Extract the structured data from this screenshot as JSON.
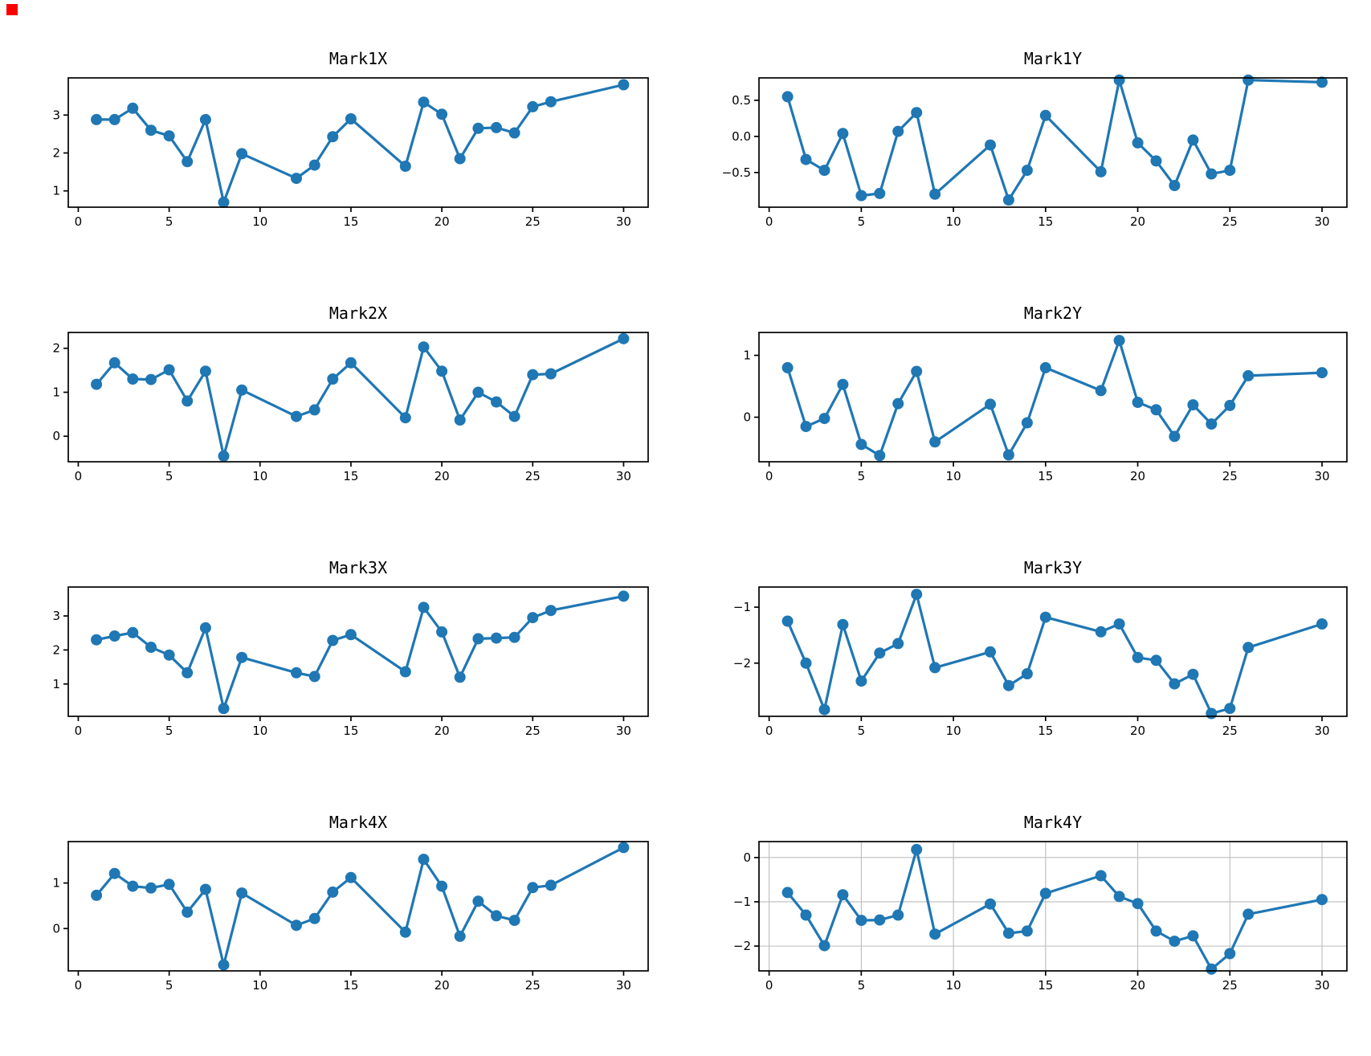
{
  "corner_marker": {
    "color": "#fa0000"
  },
  "chart_data": [
    {
      "type": "line",
      "title": "Mark1X",
      "x": [
        1,
        2,
        3,
        4,
        5,
        6,
        7,
        8,
        9,
        12,
        13,
        14,
        15,
        18,
        19,
        20,
        21,
        22,
        23,
        24,
        25,
        26,
        30
      ],
      "values": [
        2.88,
        2.88,
        3.18,
        2.6,
        2.45,
        1.77,
        2.88,
        0.7,
        1.98,
        1.33,
        1.68,
        2.43,
        2.9,
        1.65,
        3.34,
        3.02,
        1.85,
        2.65,
        2.67,
        2.53,
        3.22,
        3.35,
        3.8
      ],
      "xlim": [
        -0.55,
        31.35
      ],
      "ylim": [
        0.57,
        3.98
      ],
      "xticks": {
        "values": [
          0,
          5,
          10,
          15,
          20,
          25,
          30
        ],
        "labels": [
          "0",
          "5",
          "10",
          "15",
          "20",
          "25",
          "30"
        ]
      },
      "yticks": {
        "values": [
          3,
          2,
          1
        ],
        "labels": [
          "3",
          "2",
          "1"
        ]
      },
      "grid": false,
      "legend": "none",
      "line_color": "#1f77b4",
      "marker": "circle"
    },
    {
      "type": "line",
      "title": "Mark1Y",
      "x": [
        1,
        2,
        3,
        4,
        5,
        6,
        7,
        8,
        9,
        12,
        13,
        14,
        15,
        18,
        19,
        20,
        21,
        22,
        23,
        24,
        25,
        26,
        30
      ],
      "values": [
        0.55,
        -0.32,
        -0.47,
        0.04,
        -0.82,
        -0.79,
        0.07,
        0.33,
        -0.8,
        -0.12,
        -0.88,
        -0.47,
        0.29,
        -0.49,
        0.78,
        -0.09,
        -0.34,
        -0.68,
        -0.05,
        -0.52,
        -0.47,
        0.78,
        0.75
      ],
      "xlim": [
        -0.55,
        31.35
      ],
      "ylim": [
        -0.98,
        0.81
      ],
      "xticks": {
        "values": [
          0,
          5,
          10,
          15,
          20,
          25,
          30
        ],
        "labels": [
          "0",
          "5",
          "10",
          "15",
          "20",
          "25",
          "30"
        ]
      },
      "yticks": {
        "values": [
          0.5,
          0.0,
          -0.5
        ],
        "labels": [
          "0.5",
          "0.0",
          "−0.5"
        ]
      },
      "grid": false,
      "legend": "none",
      "line_color": "#1f77b4",
      "marker": "circle"
    },
    {
      "type": "line",
      "title": "Mark2X",
      "x": [
        1,
        2,
        3,
        4,
        5,
        6,
        7,
        8,
        9,
        12,
        13,
        14,
        15,
        18,
        19,
        20,
        21,
        22,
        23,
        24,
        25,
        26,
        30
      ],
      "values": [
        1.18,
        1.67,
        1.3,
        1.29,
        1.51,
        0.8,
        1.48,
        -0.45,
        1.05,
        0.45,
        0.6,
        1.3,
        1.67,
        0.42,
        2.03,
        1.48,
        0.37,
        1.0,
        0.78,
        0.45,
        1.4,
        1.42,
        2.22
      ],
      "xlim": [
        -0.55,
        31.35
      ],
      "ylim": [
        -0.58,
        2.36
      ],
      "xticks": {
        "values": [
          0,
          5,
          10,
          15,
          20,
          25,
          30
        ],
        "labels": [
          "0",
          "5",
          "10",
          "15",
          "20",
          "25",
          "30"
        ]
      },
      "yticks": {
        "values": [
          2,
          1,
          0
        ],
        "labels": [
          "2",
          "1",
          "0"
        ]
      },
      "grid": false,
      "legend": "none",
      "line_color": "#1f77b4",
      "marker": "circle"
    },
    {
      "type": "line",
      "title": "Mark2Y",
      "x": [
        1,
        2,
        3,
        4,
        5,
        6,
        7,
        8,
        9,
        12,
        13,
        14,
        15,
        18,
        19,
        20,
        21,
        22,
        23,
        24,
        25,
        26,
        30
      ],
      "values": [
        0.8,
        -0.15,
        -0.02,
        0.53,
        -0.44,
        -0.62,
        0.22,
        0.74,
        -0.4,
        0.21,
        -0.61,
        -0.09,
        0.8,
        0.43,
        1.24,
        0.24,
        0.12,
        -0.31,
        0.2,
        -0.11,
        0.19,
        0.67,
        0.72
      ],
      "xlim": [
        -0.55,
        31.35
      ],
      "ylim": [
        -0.72,
        1.37
      ],
      "xticks": {
        "values": [
          0,
          5,
          10,
          15,
          20,
          25,
          30
        ],
        "labels": [
          "0",
          "5",
          "10",
          "15",
          "20",
          "25",
          "30"
        ]
      },
      "yticks": {
        "values": [
          1,
          0
        ],
        "labels": [
          "1",
          "0"
        ]
      },
      "grid": false,
      "legend": "none",
      "line_color": "#1f77b4",
      "marker": "circle"
    },
    {
      "type": "line",
      "title": "Mark3X",
      "x": [
        1,
        2,
        3,
        4,
        5,
        6,
        7,
        8,
        9,
        12,
        13,
        14,
        15,
        18,
        19,
        20,
        21,
        22,
        23,
        24,
        25,
        26,
        30
      ],
      "values": [
        2.3,
        2.41,
        2.51,
        2.08,
        1.85,
        1.33,
        2.65,
        0.28,
        1.78,
        1.33,
        1.22,
        2.28,
        2.45,
        1.36,
        3.25,
        2.53,
        1.2,
        2.33,
        2.35,
        2.37,
        2.95,
        3.16,
        3.58
      ],
      "xlim": [
        -0.55,
        31.35
      ],
      "ylim": [
        0.05,
        3.85
      ],
      "xticks": {
        "values": [
          0,
          5,
          10,
          15,
          20,
          25,
          30
        ],
        "labels": [
          "0",
          "5",
          "10",
          "15",
          "20",
          "25",
          "30"
        ]
      },
      "yticks": {
        "values": [
          3,
          2,
          1
        ],
        "labels": [
          "3",
          "2",
          "1"
        ]
      },
      "grid": false,
      "legend": "none",
      "line_color": "#1f77b4",
      "marker": "circle"
    },
    {
      "type": "line",
      "title": "Mark3Y",
      "x": [
        1,
        2,
        3,
        4,
        5,
        6,
        7,
        8,
        9,
        12,
        13,
        14,
        15,
        18,
        19,
        20,
        21,
        22,
        23,
        24,
        25,
        26,
        30
      ],
      "values": [
        -1.25,
        -2.0,
        -2.83,
        -1.31,
        -2.32,
        -1.82,
        -1.65,
        -0.77,
        -2.08,
        -1.8,
        -2.4,
        -2.19,
        -1.18,
        -1.44,
        -1.3,
        -1.9,
        -1.95,
        -2.37,
        -2.2,
        -2.9,
        -2.81,
        -1.72,
        -1.3
      ],
      "xlim": [
        -0.55,
        31.35
      ],
      "ylim": [
        -2.95,
        -0.64
      ],
      "xticks": {
        "values": [
          0,
          5,
          10,
          15,
          20,
          25,
          30
        ],
        "labels": [
          "0",
          "5",
          "10",
          "15",
          "20",
          "25",
          "30"
        ]
      },
      "yticks": {
        "values": [
          -1,
          -2
        ],
        "labels": [
          "−1",
          "−2"
        ]
      },
      "grid": false,
      "legend": "none",
      "line_color": "#1f77b4",
      "marker": "circle"
    },
    {
      "type": "line",
      "title": "Mark4X",
      "x": [
        1,
        2,
        3,
        4,
        5,
        6,
        7,
        8,
        9,
        12,
        13,
        14,
        15,
        18,
        19,
        20,
        21,
        22,
        23,
        24,
        25,
        26,
        30
      ],
      "values": [
        0.73,
        1.21,
        0.93,
        0.89,
        0.97,
        0.36,
        0.86,
        -0.8,
        0.78,
        0.07,
        0.22,
        0.8,
        1.12,
        -0.08,
        1.52,
        0.93,
        -0.17,
        0.6,
        0.28,
        0.18,
        0.9,
        0.95,
        1.78
      ],
      "xlim": [
        -0.55,
        31.35
      ],
      "ylim": [
        -0.93,
        1.91
      ],
      "xticks": {
        "values": [
          0,
          5,
          10,
          15,
          20,
          25,
          30
        ],
        "labels": [
          "0",
          "5",
          "10",
          "15",
          "20",
          "25",
          "30"
        ]
      },
      "yticks": {
        "values": [
          1,
          0
        ],
        "labels": [
          "1",
          "0"
        ]
      },
      "grid": false,
      "legend": "none",
      "line_color": "#1f77b4",
      "marker": "circle"
    },
    {
      "type": "line",
      "title": "Mark4Y",
      "x": [
        1,
        2,
        3,
        4,
        5,
        6,
        7,
        8,
        9,
        12,
        13,
        14,
        15,
        18,
        19,
        20,
        21,
        22,
        23,
        24,
        25,
        26,
        30
      ],
      "values": [
        -0.79,
        -1.3,
        -1.99,
        -0.84,
        -1.42,
        -1.41,
        -1.3,
        0.18,
        -1.73,
        -1.05,
        -1.71,
        -1.66,
        -0.81,
        -0.41,
        -0.88,
        -1.04,
        -1.66,
        -1.89,
        -1.77,
        -2.52,
        -2.17,
        -1.28,
        -0.95
      ],
      "xlim": [
        -0.55,
        31.35
      ],
      "ylim": [
        -2.56,
        0.36
      ],
      "xticks": {
        "values": [
          0,
          5,
          10,
          15,
          20,
          25,
          30
        ],
        "labels": [
          "0",
          "5",
          "10",
          "15",
          "20",
          "25",
          "30"
        ]
      },
      "yticks": {
        "values": [
          0,
          -1,
          -2
        ],
        "labels": [
          "0",
          "−1",
          "−2"
        ]
      },
      "grid": true,
      "grid_color": "#bcbcbc",
      "legend": "none",
      "line_color": "#1f77b4",
      "marker": "circle"
    }
  ]
}
